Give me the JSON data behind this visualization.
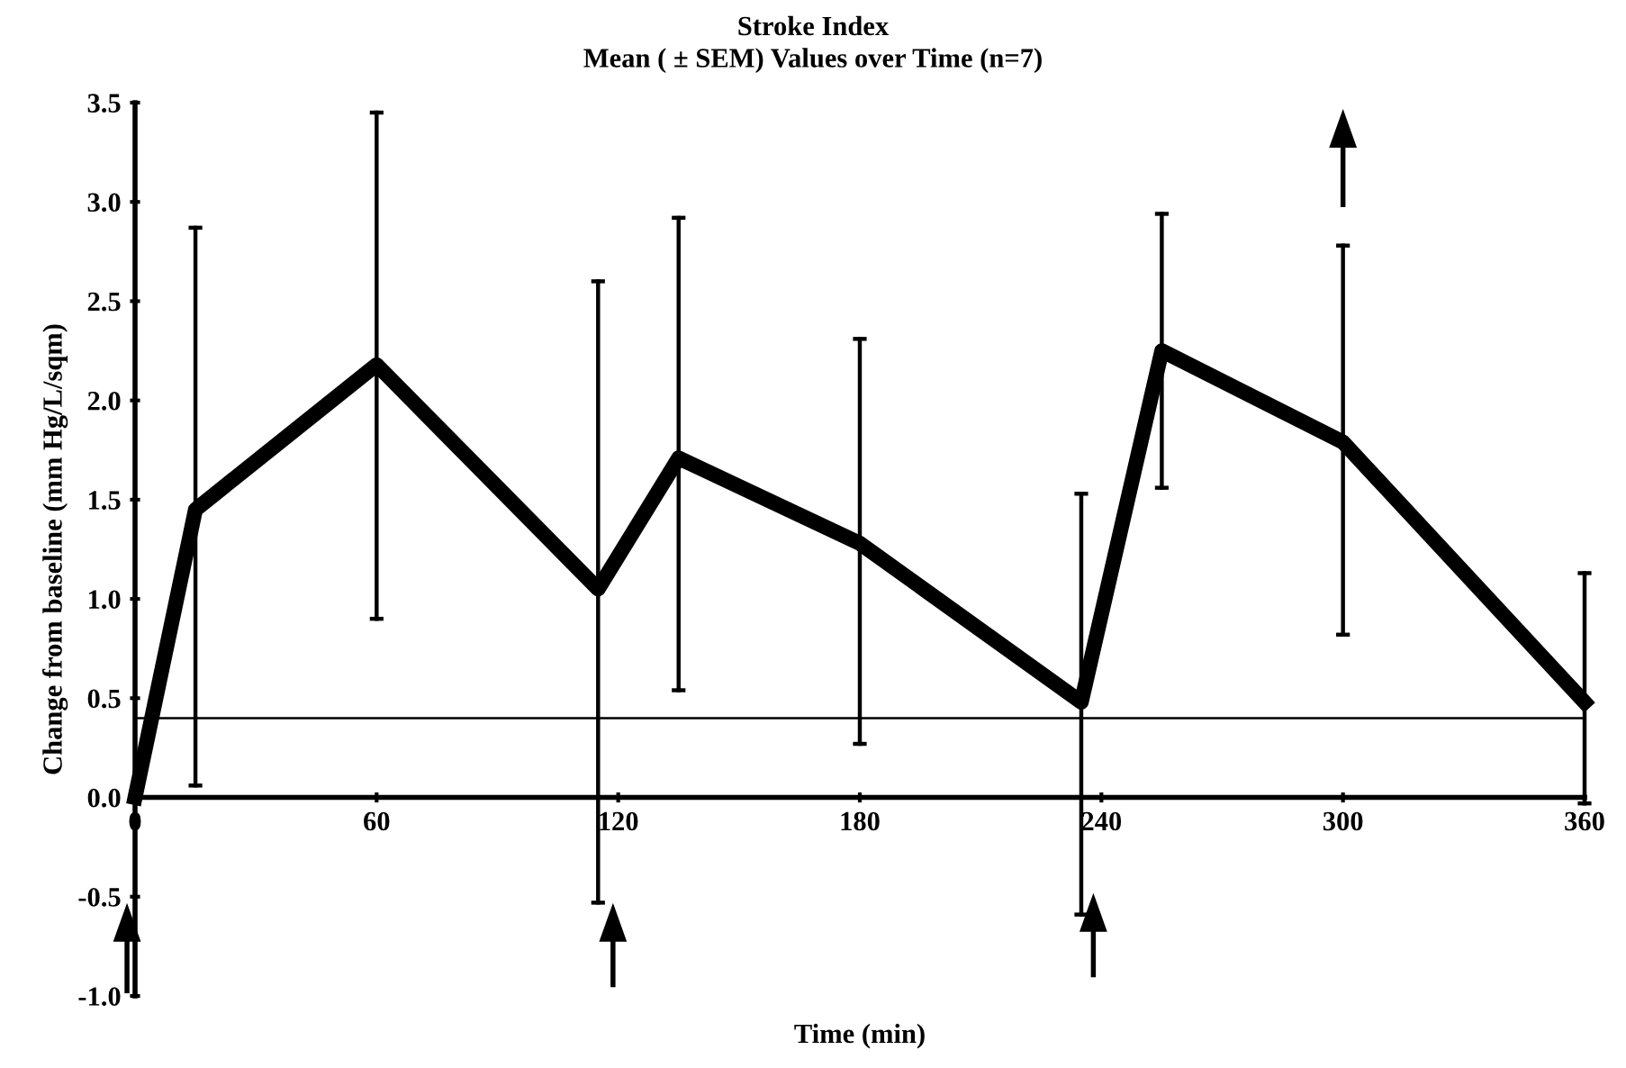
{
  "chart_data": {
    "type": "line",
    "title": "Stroke Index",
    "subtitle": "Mean ( ± SEM) Values over Time (n=7)",
    "xlabel": "Time (min)",
    "ylabel": "Change from baseline (mm Hg/L/sqm)",
    "x": [
      0,
      15,
      60,
      115,
      135,
      180,
      235,
      255,
      300,
      360
    ],
    "series": [
      {
        "color": "#000000",
        "values": [
          0.0,
          1.45,
          2.18,
          1.05,
          1.71,
          1.28,
          0.48,
          2.25,
          1.79,
          0.48
        ],
        "errors": [
          null,
          [
            0.06,
            2.87
          ],
          [
            0.9,
            3.45
          ],
          [
            -0.53,
            2.6
          ],
          [
            0.54,
            2.92
          ],
          [
            0.27,
            2.31
          ],
          [
            -0.59,
            1.53
          ],
          [
            1.56,
            2.94
          ],
          [
            0.82,
            2.78
          ],
          [
            -0.03,
            1.13
          ]
        ]
      }
    ],
    "xlim": [
      0,
      360
    ],
    "ylim": [
      -1.0,
      3.5
    ],
    "xticks": [
      0,
      60,
      120,
      180,
      240,
      300,
      360
    ],
    "yticks": [
      {
        "value": -1.0,
        "label": "-1.0"
      },
      {
        "value": -0.5,
        "label": "-0.5"
      },
      {
        "value": 0.0,
        "label": "0.0"
      },
      {
        "value": 0.5,
        "label": "0.5"
      },
      {
        "value": 1.0,
        "label": "1.0"
      },
      {
        "value": 1.5,
        "label": "1.5"
      },
      {
        "value": 2.0,
        "label": "2.0"
      },
      {
        "value": 2.5,
        "label": "2.5"
      },
      {
        "value": 3.0,
        "label": "3.0"
      },
      {
        "value": 3.5,
        "label": "3.5"
      }
    ],
    "ref_lines": [
      {
        "axis": "y",
        "value": 0.4,
        "color": "#000000"
      }
    ],
    "marker": "none",
    "line_style": "solid",
    "grid": false,
    "legend": false
  }
}
